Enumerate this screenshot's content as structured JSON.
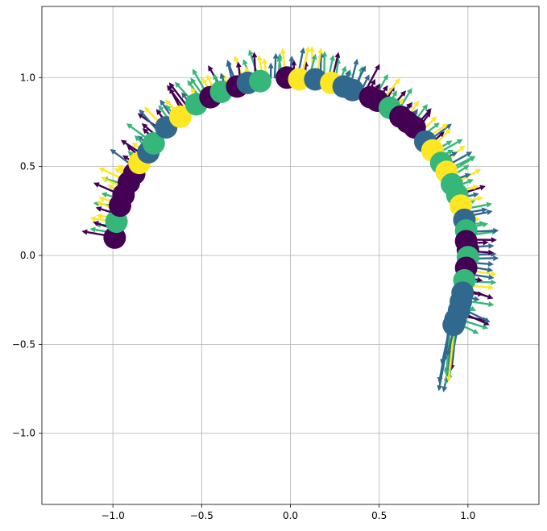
{
  "chart_data": {
    "type": "scatter",
    "title": "",
    "xlabel": "",
    "ylabel": "",
    "xlim": [
      -1.4,
      1.4
    ],
    "ylim": [
      -1.4,
      1.4
    ],
    "grid": true,
    "x_ticks": [
      -1.0,
      -0.5,
      0.0,
      0.5,
      1.0
    ],
    "y_ticks": [
      -1.0,
      -0.5,
      0.0,
      0.5,
      1.0
    ],
    "x_tick_labels": [
      "−1.0",
      "−0.5",
      "0.0",
      "0.5",
      "1.0"
    ],
    "y_tick_labels": [
      "−1.0",
      "−0.5",
      "0.0",
      "0.5",
      "1.0"
    ],
    "colormap": [
      "#440154",
      "#31688e",
      "#35b779",
      "#fde725"
    ],
    "points": [
      {
        "x": -0.99,
        "y": 0.1,
        "c": 0
      },
      {
        "x": -0.98,
        "y": 0.19,
        "c": 2
      },
      {
        "x": -0.96,
        "y": 0.28,
        "c": 0
      },
      {
        "x": -0.94,
        "y": 0.34,
        "c": 0
      },
      {
        "x": -0.91,
        "y": 0.41,
        "c": 0
      },
      {
        "x": -0.88,
        "y": 0.46,
        "c": 0
      },
      {
        "x": -0.85,
        "y": 0.52,
        "c": 3
      },
      {
        "x": -0.8,
        "y": 0.58,
        "c": 1
      },
      {
        "x": -0.77,
        "y": 0.63,
        "c": 2
      },
      {
        "x": -0.7,
        "y": 0.72,
        "c": 1
      },
      {
        "x": -0.62,
        "y": 0.78,
        "c": 3
      },
      {
        "x": -0.53,
        "y": 0.85,
        "c": 2
      },
      {
        "x": -0.45,
        "y": 0.89,
        "c": 0
      },
      {
        "x": -0.39,
        "y": 0.92,
        "c": 2
      },
      {
        "x": -0.3,
        "y": 0.95,
        "c": 0
      },
      {
        "x": -0.24,
        "y": 0.97,
        "c": 1
      },
      {
        "x": -0.17,
        "y": 0.98,
        "c": 2
      },
      {
        "x": -0.02,
        "y": 1.0,
        "c": 0
      },
      {
        "x": 0.05,
        "y": 0.99,
        "c": 3
      },
      {
        "x": 0.14,
        "y": 0.99,
        "c": 1
      },
      {
        "x": 0.23,
        "y": 0.97,
        "c": 3
      },
      {
        "x": 0.3,
        "y": 0.95,
        "c": 1
      },
      {
        "x": 0.35,
        "y": 0.93,
        "c": 1
      },
      {
        "x": 0.45,
        "y": 0.89,
        "c": 0
      },
      {
        "x": 0.49,
        "y": 0.87,
        "c": 0
      },
      {
        "x": 0.56,
        "y": 0.83,
        "c": 2
      },
      {
        "x": 0.62,
        "y": 0.78,
        "c": 0
      },
      {
        "x": 0.66,
        "y": 0.75,
        "c": 0
      },
      {
        "x": 0.7,
        "y": 0.72,
        "c": 0
      },
      {
        "x": 0.76,
        "y": 0.64,
        "c": 1
      },
      {
        "x": 0.8,
        "y": 0.59,
        "c": 3
      },
      {
        "x": 0.85,
        "y": 0.52,
        "c": 2
      },
      {
        "x": 0.88,
        "y": 0.47,
        "c": 3
      },
      {
        "x": 0.91,
        "y": 0.4,
        "c": 2
      },
      {
        "x": 0.94,
        "y": 0.34,
        "c": 2
      },
      {
        "x": 0.96,
        "y": 0.28,
        "c": 3
      },
      {
        "x": 0.98,
        "y": 0.2,
        "c": 1
      },
      {
        "x": 0.99,
        "y": 0.14,
        "c": 2
      },
      {
        "x": 0.99,
        "y": 0.08,
        "c": 0
      },
      {
        "x": 1.0,
        "y": 0.03,
        "c": 0
      },
      {
        "x": 1.0,
        "y": -0.01,
        "c": 2
      },
      {
        "x": 0.99,
        "y": -0.07,
        "c": 0
      },
      {
        "x": 0.98,
        "y": -0.14,
        "c": 2
      },
      {
        "x": 0.97,
        "y": -0.21,
        "c": 1
      },
      {
        "x": 0.96,
        "y": -0.26,
        "c": 1
      },
      {
        "x": 0.95,
        "y": -0.31,
        "c": 1
      },
      {
        "x": 0.93,
        "y": -0.36,
        "c": 1
      },
      {
        "x": 0.92,
        "y": -0.39,
        "c": 1
      }
    ]
  }
}
